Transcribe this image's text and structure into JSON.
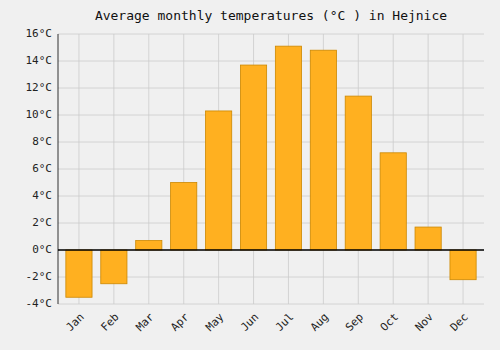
{
  "chart_data": {
    "type": "bar",
    "title": "Average monthly temperatures (°C ) in Hejnice",
    "categories": [
      "Jan",
      "Feb",
      "Mar",
      "Apr",
      "May",
      "Jun",
      "Jul",
      "Aug",
      "Sep",
      "Oct",
      "Nov",
      "Dec"
    ],
    "values": [
      -3.5,
      -2.5,
      0.7,
      5.0,
      10.3,
      13.7,
      15.1,
      14.8,
      11.4,
      7.2,
      1.7,
      -2.2
    ],
    "color": "#FFB020",
    "ylim": [
      -4,
      16
    ],
    "yticks": [
      {
        "value": -4,
        "label": "-4°C"
      },
      {
        "value": -2,
        "label": "-2°C"
      },
      {
        "value": 0,
        "label": "0°C"
      },
      {
        "value": 2,
        "label": "2°C"
      },
      {
        "value": 4,
        "label": "4°C"
      },
      {
        "value": 6,
        "label": "6°C"
      },
      {
        "value": 8,
        "label": "8°C"
      },
      {
        "value": 10,
        "label": "10°C"
      },
      {
        "value": 12,
        "label": "12°C"
      },
      {
        "value": 14,
        "label": "14°C"
      },
      {
        "value": 16,
        "label": "16°C"
      }
    ],
    "grid": true
  }
}
